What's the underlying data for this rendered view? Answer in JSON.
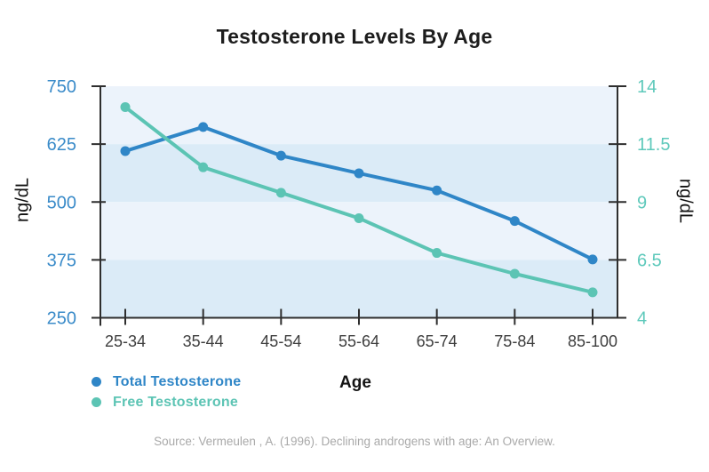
{
  "chart_data": {
    "type": "line",
    "title": "Testosterone Levels By Age",
    "xlabel": "Age",
    "categories": [
      "25-34",
      "35-44",
      "45-54",
      "55-64",
      "65-74",
      "75-84",
      "85-100"
    ],
    "series": [
      {
        "name": "Total Testosterone",
        "axis": "left",
        "color": "#2f86c7",
        "values": [
          610,
          662,
          600,
          562,
          525,
          459,
          376
        ]
      },
      {
        "name": "Free Testosterone",
        "axis": "right",
        "color": "#5cc4b4",
        "values": [
          13.1,
          10.5,
          9.4,
          8.3,
          6.8,
          5.9,
          5.1
        ]
      }
    ],
    "left_axis": {
      "label": "ng/dL",
      "min": 250,
      "max": 750,
      "ticks": [
        750,
        625,
        500,
        375,
        250
      ],
      "color": "#3a8bc9"
    },
    "right_axis": {
      "label": "ng/dL",
      "min": 4,
      "max": 14,
      "ticks": [
        14,
        11.5,
        9,
        6.5,
        4
      ],
      "color": "#5ec9bb"
    },
    "band_colors": [
      "#ecf3fb",
      "#dbebf7"
    ],
    "axis_color": "#2e2e2e",
    "x_tick_label_color": "#3e3e3e",
    "grid": "alternating horizontal bands, no gridlines",
    "legend_position": "bottom-left"
  },
  "source": "Source: Vermeulen , A. (1996). Declining androgens with age: An Overview."
}
